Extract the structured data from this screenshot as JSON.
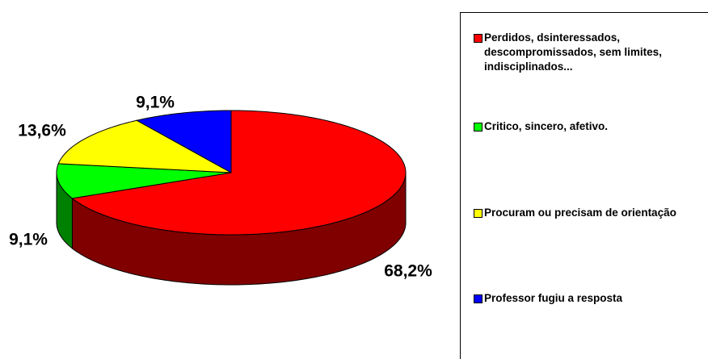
{
  "chart_data": {
    "type": "pie3d",
    "categories": [
      "Perdidos, dsinteressados, descompromissados, sem limites, indisciplinados...",
      "Critico, sincero, afetivo.",
      "Procuram ou precisam de orientação",
      "Professor fugiu a resposta"
    ],
    "values": [
      68.2,
      9.1,
      13.6,
      9.1
    ],
    "value_labels": [
      "68,2%",
      "9,1%",
      "13,6%",
      "9,1%"
    ],
    "colors": [
      "#ff0000",
      "#00ff00",
      "#ffff00",
      "#0000ff"
    ],
    "side_colors": [
      "#800000",
      "#008000",
      "#808000",
      "#000080"
    ],
    "legend": "right"
  }
}
